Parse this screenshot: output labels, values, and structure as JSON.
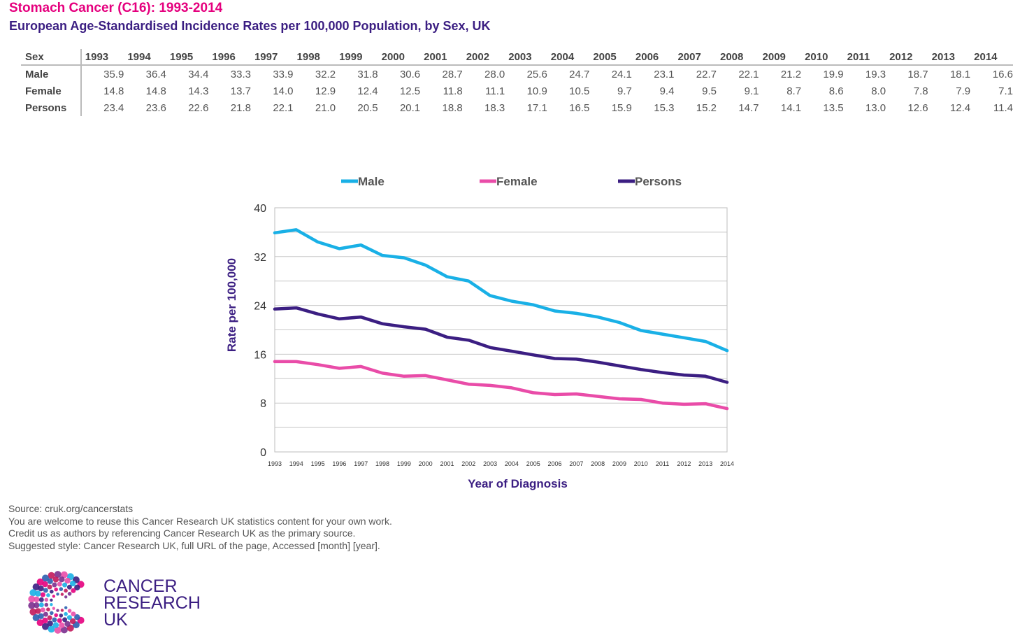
{
  "title": "Stomach Cancer (C16): 1993-2014",
  "subtitle": "European Age-Standardised Incidence Rates per 100,000 Population, by Sex, UK",
  "table": {
    "header_label": "Sex",
    "years": [
      "1993",
      "1994",
      "1995",
      "1996",
      "1997",
      "1998",
      "1999",
      "2000",
      "2001",
      "2002",
      "2003",
      "2004",
      "2005",
      "2006",
      "2007",
      "2008",
      "2009",
      "2010",
      "2011",
      "2012",
      "2013",
      "2014"
    ],
    "rows": [
      {
        "label": "Male",
        "values": [
          "35.9",
          "36.4",
          "34.4",
          "33.3",
          "33.9",
          "32.2",
          "31.8",
          "30.6",
          "28.7",
          "28.0",
          "25.6",
          "24.7",
          "24.1",
          "23.1",
          "22.7",
          "22.1",
          "21.2",
          "19.9",
          "19.3",
          "18.7",
          "18.1",
          "16.6"
        ]
      },
      {
        "label": "Female",
        "values": [
          "14.8",
          "14.8",
          "14.3",
          "13.7",
          "14.0",
          "12.9",
          "12.4",
          "12.5",
          "11.8",
          "11.1",
          "10.9",
          "10.5",
          "9.7",
          "9.4",
          "9.5",
          "9.1",
          "8.7",
          "8.6",
          "8.0",
          "7.8",
          "7.9",
          "7.1"
        ]
      },
      {
        "label": "Persons",
        "values": [
          "23.4",
          "23.6",
          "22.6",
          "21.8",
          "22.1",
          "21.0",
          "20.5",
          "20.1",
          "18.8",
          "18.3",
          "17.1",
          "16.5",
          "15.9",
          "15.3",
          "15.2",
          "14.7",
          "14.1",
          "13.5",
          "13.0",
          "12.6",
          "12.4",
          "11.4"
        ]
      }
    ]
  },
  "chart_data": {
    "type": "line",
    "title": "",
    "xlabel": "Year of Diagnosis",
    "ylabel": "Rate per 100,000",
    "ylim": [
      0,
      40
    ],
    "yticks": [
      0,
      8,
      16,
      24,
      32,
      40
    ],
    "grid": true,
    "legend_position": "top",
    "x": [
      "1993",
      "1994",
      "1995",
      "1996",
      "1997",
      "1998",
      "1999",
      "2000",
      "2001",
      "2002",
      "2003",
      "2004",
      "2005",
      "2006",
      "2007",
      "2008",
      "2009",
      "2010",
      "2011",
      "2012",
      "2013",
      "2014"
    ],
    "series": [
      {
        "name": "Male",
        "color": "#19b0e6",
        "values": [
          35.9,
          36.4,
          34.4,
          33.3,
          33.9,
          32.2,
          31.8,
          30.6,
          28.7,
          28.0,
          25.6,
          24.7,
          24.1,
          23.1,
          22.7,
          22.1,
          21.2,
          19.9,
          19.3,
          18.7,
          18.1,
          16.6
        ]
      },
      {
        "name": "Female",
        "color": "#e94ca8",
        "values": [
          14.8,
          14.8,
          14.3,
          13.7,
          14.0,
          12.9,
          12.4,
          12.5,
          11.8,
          11.1,
          10.9,
          10.5,
          9.7,
          9.4,
          9.5,
          9.1,
          8.7,
          8.6,
          8.0,
          7.8,
          7.9,
          7.1
        ]
      },
      {
        "name": "Persons",
        "color": "#3b1e82",
        "values": [
          23.4,
          23.6,
          22.6,
          21.8,
          22.1,
          21.0,
          20.5,
          20.1,
          18.8,
          18.3,
          17.1,
          16.5,
          15.9,
          15.3,
          15.2,
          14.7,
          14.1,
          13.5,
          13.0,
          12.6,
          12.4,
          11.4
        ]
      }
    ]
  },
  "source": {
    "line1": "Source: cruk.org/cancerstats",
    "line2": "You are welcome to reuse this Cancer Research UK statistics content for your own work.",
    "line3": "Credit us as authors by referencing Cancer Research UK as the primary source.",
    "line4": "Suggested style: Cancer Research UK, full URL of the page, Accessed [month] [year]."
  },
  "logo": {
    "line1": "CANCER",
    "line2": "RESEARCH",
    "line3": "UK"
  },
  "colors": {
    "title": "#e5007e",
    "subtitle": "#3b1e82",
    "male": "#19b0e6",
    "female": "#e94ca8",
    "persons": "#3b1e82"
  }
}
